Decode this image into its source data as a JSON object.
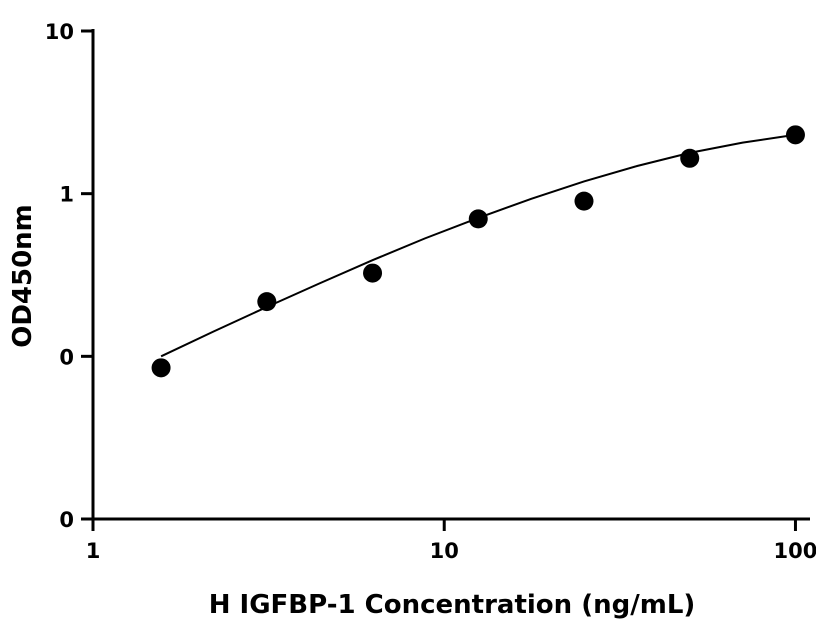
{
  "chart_data": {
    "type": "scatter",
    "title": "",
    "xlabel": "H IGFBP-1 Concentration (ng/mL)",
    "ylabel": "OD450nm",
    "x_scale": "log",
    "y_scale": "log",
    "xlim": [
      1,
      110
    ],
    "ylim": [
      0.01,
      10
    ],
    "grid": false,
    "x_ticks": [
      {
        "value": 1,
        "label": "1"
      },
      {
        "value": 10,
        "label": "10"
      },
      {
        "value": 100,
        "label": "100"
      }
    ],
    "y_ticks": [
      {
        "value": 0.01,
        "label": "0"
      },
      {
        "value": 0.1,
        "label": "0"
      },
      {
        "value": 1,
        "label": "1"
      },
      {
        "value": 10,
        "label": "10"
      }
    ],
    "series": [
      {
        "points": [
          {
            "x": 1.5625,
            "y": 0.085
          },
          {
            "x": 3.125,
            "y": 0.217
          },
          {
            "x": 6.25,
            "y": 0.325
          },
          {
            "x": 12.5,
            "y": 0.7
          },
          {
            "x": 25,
            "y": 0.9
          },
          {
            "x": 50,
            "y": 1.65
          },
          {
            "x": 100,
            "y": 2.3
          }
        ],
        "fit": [
          {
            "x": 1.5625,
            "y": 0.1
          },
          {
            "x": 2.2,
            "y": 0.142
          },
          {
            "x": 3.125,
            "y": 0.201
          },
          {
            "x": 4.4,
            "y": 0.28
          },
          {
            "x": 6.25,
            "y": 0.39
          },
          {
            "x": 8.8,
            "y": 0.53
          },
          {
            "x": 12.5,
            "y": 0.71
          },
          {
            "x": 17.7,
            "y": 0.93
          },
          {
            "x": 25,
            "y": 1.19
          },
          {
            "x": 35.4,
            "y": 1.48
          },
          {
            "x": 50,
            "y": 1.78
          },
          {
            "x": 70.7,
            "y": 2.06
          },
          {
            "x": 100,
            "y": 2.3
          }
        ],
        "color": "#000000"
      }
    ]
  }
}
